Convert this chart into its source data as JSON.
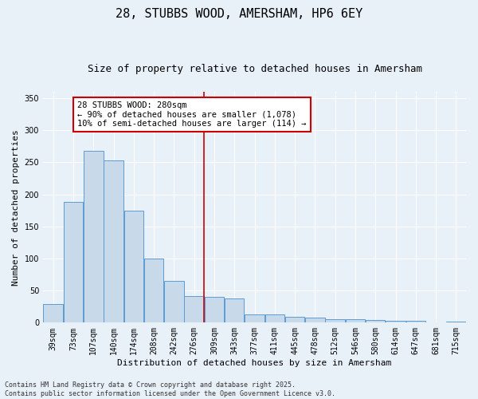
{
  "title": "28, STUBBS WOOD, AMERSHAM, HP6 6EY",
  "subtitle": "Size of property relative to detached houses in Amersham",
  "xlabel": "Distribution of detached houses by size in Amersham",
  "ylabel": "Number of detached properties",
  "categories": [
    "39sqm",
    "73sqm",
    "107sqm",
    "140sqm",
    "174sqm",
    "208sqm",
    "242sqm",
    "276sqm",
    "309sqm",
    "343sqm",
    "377sqm",
    "411sqm",
    "445sqm",
    "478sqm",
    "512sqm",
    "546sqm",
    "580sqm",
    "614sqm",
    "647sqm",
    "681sqm",
    "715sqm"
  ],
  "values": [
    29,
    188,
    268,
    253,
    174,
    100,
    65,
    42,
    40,
    38,
    13,
    13,
    9,
    8,
    6,
    5,
    4,
    3,
    3,
    1,
    2
  ],
  "bar_color": "#c8d9ea",
  "bar_edge_color": "#5b9bd5",
  "vline_x": 7.5,
  "vline_color": "#cc0000",
  "annotation_text": "28 STUBBS WOOD: 280sqm\n← 90% of detached houses are smaller (1,078)\n10% of semi-detached houses are larger (114) →",
  "annotation_box_color": "#ffffff",
  "annotation_box_edge_color": "#cc0000",
  "ylim": [
    0,
    360
  ],
  "yticks": [
    0,
    50,
    100,
    150,
    200,
    250,
    300,
    350
  ],
  "background_color": "#e8f0f8",
  "footer_line1": "Contains HM Land Registry data © Crown copyright and database right 2025.",
  "footer_line2": "Contains public sector information licensed under the Open Government Licence v3.0.",
  "title_fontsize": 11,
  "subtitle_fontsize": 9,
  "label_fontsize": 8,
  "tick_fontsize": 7,
  "footer_fontsize": 6,
  "annot_fontsize": 7.5
}
